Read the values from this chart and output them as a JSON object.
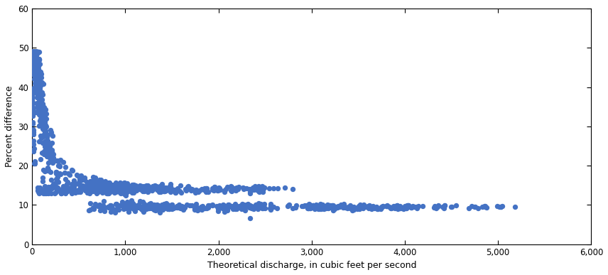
{
  "title": "",
  "xlabel": "Theoretical discharge, in cubic feet per second",
  "ylabel": "Percent difference",
  "xlim": [
    0,
    6000
  ],
  "ylim": [
    0,
    60
  ],
  "xticks": [
    0,
    1000,
    2000,
    3000,
    4000,
    5000,
    6000
  ],
  "yticks": [
    0,
    10,
    20,
    30,
    40,
    50,
    60
  ],
  "dot_color": "#4472c4",
  "dot_size": 28,
  "background_color": "#ffffff",
  "seed": 42
}
